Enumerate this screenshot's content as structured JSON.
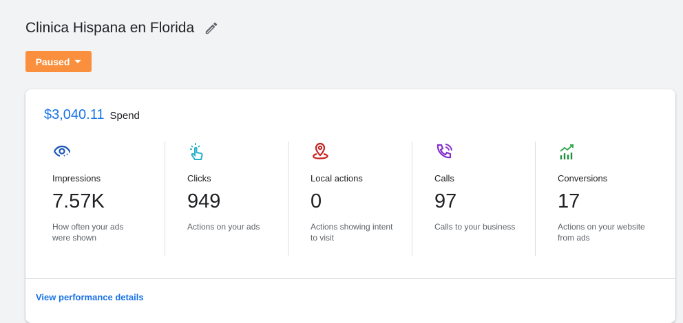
{
  "header": {
    "title": "Clinica Hispana en Florida",
    "edit_icon": "pencil-icon"
  },
  "status": {
    "label": "Paused",
    "color": "#fa903e"
  },
  "summary": {
    "spend_value": "$3,040.11",
    "spend_label": "Spend"
  },
  "metrics": [
    {
      "icon": "eye-icon",
      "name": "Impressions",
      "value": "7.57K",
      "desc": "How often your ads were shown",
      "color": "#1a56b8"
    },
    {
      "icon": "click-icon",
      "name": "Clicks",
      "value": "949",
      "desc": "Actions on your ads",
      "color": "#24b0c8"
    },
    {
      "icon": "location-icon",
      "name": "Local actions",
      "value": "0",
      "desc": "Actions showing intent to visit",
      "color": "#c5221f"
    },
    {
      "icon": "phone-call-icon",
      "name": "Calls",
      "value": "97",
      "desc": "Calls to your business",
      "color": "#8430ce"
    },
    {
      "icon": "chart-up-icon",
      "name": "Conversions",
      "value": "17",
      "desc": "Actions on your website from ads",
      "color": "#1e8e3e"
    }
  ],
  "footer": {
    "link": "View performance details"
  }
}
